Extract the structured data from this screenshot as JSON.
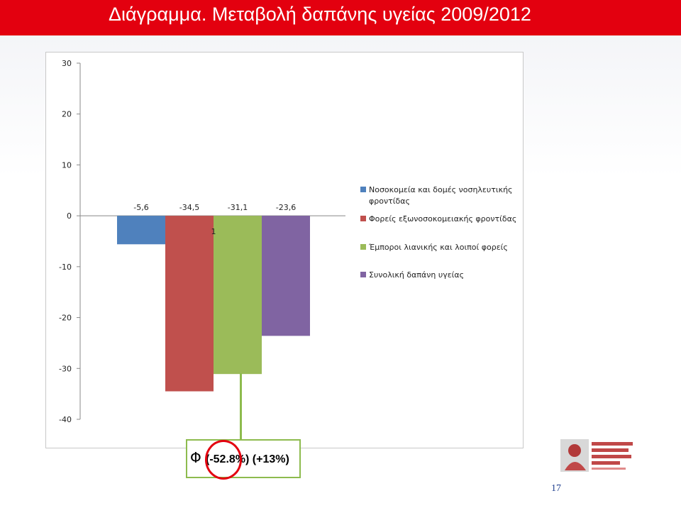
{
  "title": "Διάγραμμα. Μεταβολή δαπάνης υγείας 2009/2012",
  "chart_data": {
    "type": "bar",
    "ylim": [
      -40,
      30
    ],
    "yticks": [
      30,
      20,
      10,
      0,
      -10,
      -20,
      -30,
      -40
    ],
    "grid": false,
    "legend_position": "right",
    "series": [
      {
        "name": "Νοσοκομεία και δομές νοσηλευτικής φροντίδας",
        "value": -5.6,
        "label": "-5,6",
        "color": "#4f81bd"
      },
      {
        "name": "Φορείς εξωνοσοκομειακής φροντίδας",
        "value": -34.5,
        "label": "-34,5",
        "color": "#c0504d"
      },
      {
        "name": "Έμποροι λιανικής και λοιποί φορείς",
        "value": -31.1,
        "label": "-31,1",
        "color": "#9bbb59"
      },
      {
        "name": "Συνολική δαπάνη υγείας",
        "value": -23.6,
        "label": "-23,6",
        "color": "#8064a2"
      }
    ],
    "category_label": "1"
  },
  "annotation": {
    "symbol": "Φ",
    "text": "(-52.8%) (+13%)"
  },
  "page_number": "17",
  "colors": {
    "title_bar": "#e3000f",
    "annotation_border": "#8dbb4e",
    "circle": "#e3000f"
  }
}
